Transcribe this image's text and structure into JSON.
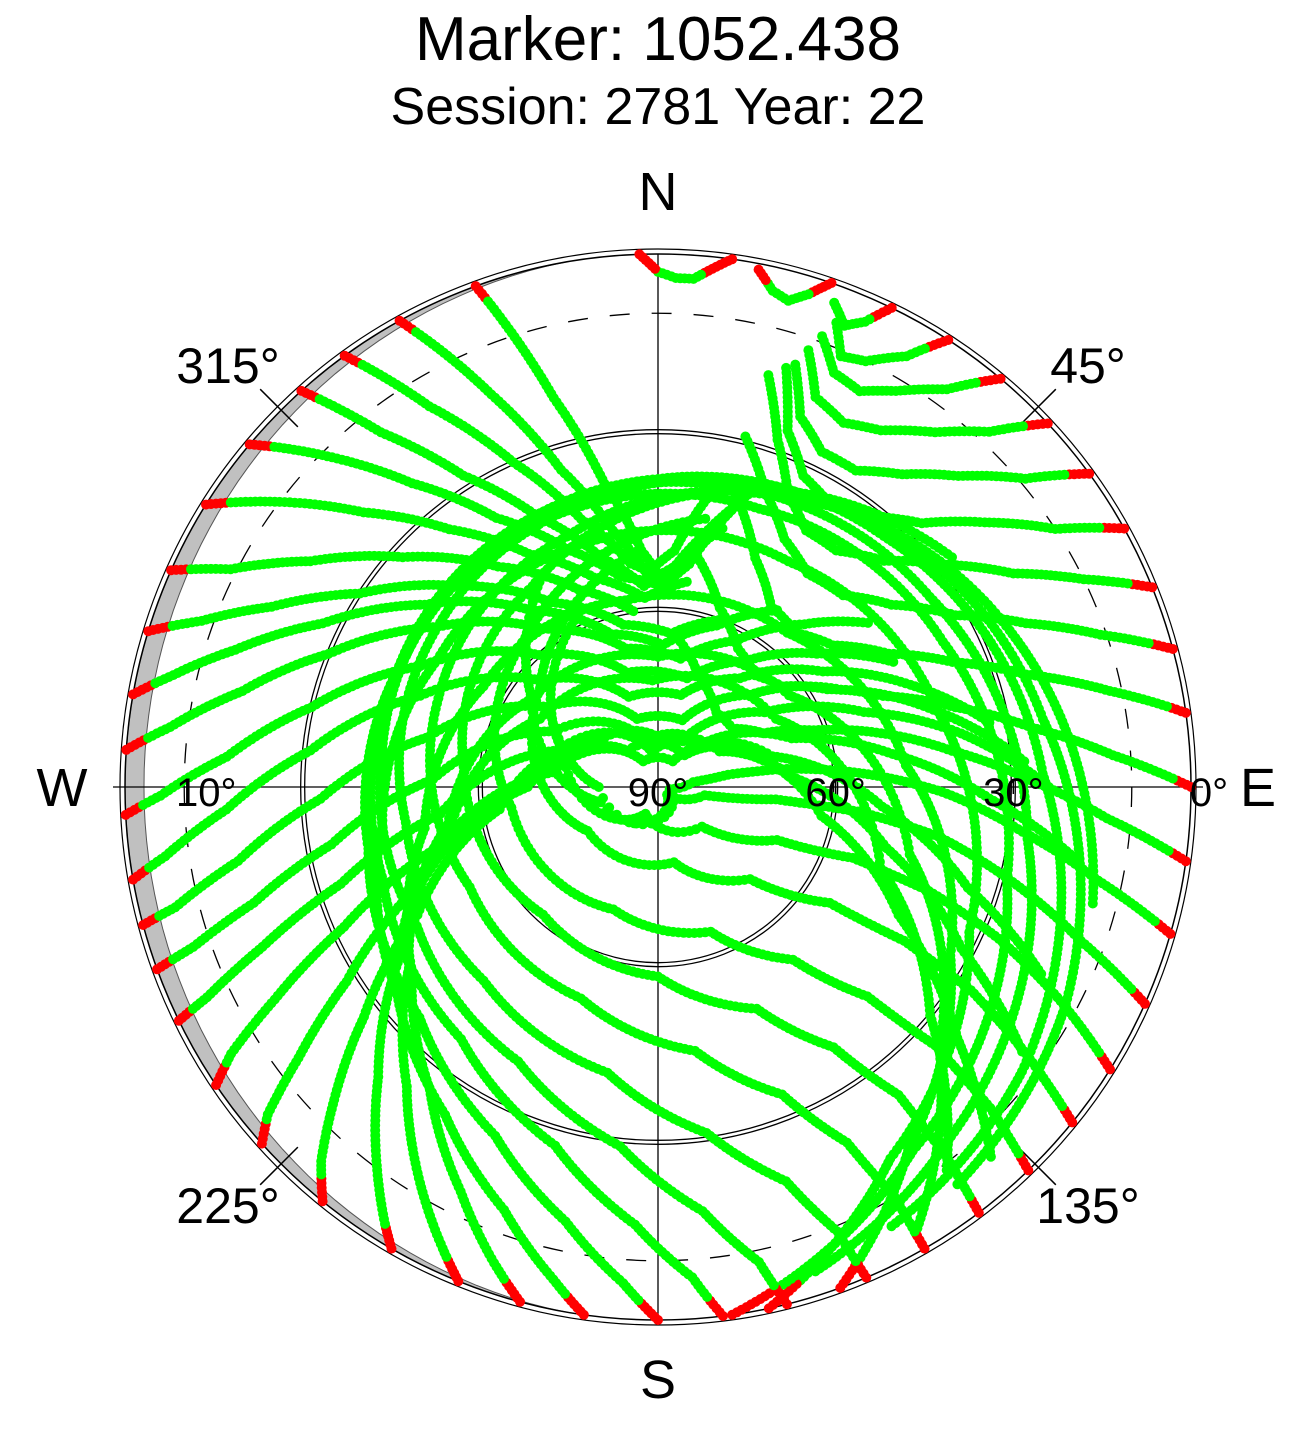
{
  "title": "Marker: 1052.438",
  "subtitle": "Session: 2781 Year: 22",
  "chart_data": {
    "type": "scatter",
    "projection": "polar (sky plot: azimuth clockwise from North, elevation 90° at centre to 0° at rim)",
    "grid": true,
    "compass": {
      "north": "N",
      "east": "E",
      "south": "S",
      "west": "W"
    },
    "azimuth_tick_labels": [
      {
        "az": 45,
        "label": "45°"
      },
      {
        "az": 135,
        "label": "135°"
      },
      {
        "az": 225,
        "label": "225°"
      },
      {
        "az": 315,
        "label": "315°"
      }
    ],
    "elevation_tick_labels_east": [
      {
        "el": 90,
        "label": "90°"
      },
      {
        "el": 60,
        "label": "60°"
      },
      {
        "el": 30,
        "label": "30°"
      },
      {
        "el": 0,
        "label": "0°"
      }
    ],
    "elevation_tick_label_west": {
      "el": 10,
      "label": "10°"
    },
    "elevation_rings": [
      60,
      30
    ],
    "cutoff_ring_dashed": 10,
    "horizon_mask_color": "#c0c0c0",
    "colors": {
      "track": "#00ff00",
      "low_elevation": "#ff0000",
      "grid": "#000000"
    },
    "low_elevation_threshold": 3,
    "tracks": [
      {
        "az": [
          340,
          345,
          350,
          356,
          2,
          8,
          14,
          18
        ],
        "el": [
          0,
          22,
          38,
          50,
          56,
          52,
          43,
          37
        ]
      },
      {
        "az": [
          331,
          337,
          343,
          350,
          357,
          4,
          10
        ],
        "el": [
          0,
          18,
          34,
          46,
          54,
          50,
          40
        ]
      },
      {
        "az": [
          324,
          329,
          336,
          344,
          353,
          2,
          10,
          16
        ],
        "el": [
          0,
          15,
          30,
          43,
          52,
          55,
          47,
          40
        ]
      },
      {
        "az": [
          318,
          322,
          328,
          336,
          346,
          356,
          6,
          14
        ],
        "el": [
          0,
          14,
          28,
          40,
          50,
          56,
          52,
          45
        ]
      },
      {
        "az": [
          310,
          315,
          321,
          329,
          339,
          350,
          1
        ],
        "el": [
          0,
          11,
          24,
          37,
          47,
          54,
          56
        ]
      },
      {
        "az": [
          302,
          307,
          313,
          321,
          331,
          343,
          356,
          8
        ],
        "el": [
          0,
          10,
          22,
          34,
          45,
          53,
          58,
          55
        ]
      },
      {
        "az": [
          294,
          297,
          303,
          312,
          324,
          338,
          352
        ],
        "el": [
          0,
          9,
          20,
          32,
          44,
          54,
          60
        ]
      },
      {
        "az": [
          287,
          290,
          295,
          303,
          315,
          330,
          348,
          5,
          20
        ],
        "el": [
          0,
          8,
          18,
          30,
          42,
          54,
          62,
          64,
          60
        ]
      },
      {
        "az": [
          280,
          283,
          288,
          296,
          308,
          324,
          343,
          2,
          20,
          34
        ],
        "el": [
          0,
          6,
          15,
          27,
          40,
          53,
          63,
          66,
          61,
          54
        ]
      },
      {
        "az": [
          274,
          277,
          283,
          292,
          306,
          324,
          347,
          10,
          28,
          42,
          52
        ],
        "el": [
          0,
          7,
          18,
          30,
          44,
          57,
          66,
          68,
          62,
          53,
          45
        ]
      },
      {
        "az": [
          267,
          269,
          274,
          283,
          297,
          318,
          345,
          15,
          35,
          50,
          62
        ],
        "el": [
          0,
          6,
          17,
          30,
          45,
          60,
          70,
          71,
          64,
          55,
          45
        ]
      },
      {
        "az": [
          260,
          262,
          267,
          276,
          291,
          312,
          342,
          14,
          37,
          55,
          68,
          79
        ],
        "el": [
          0,
          6,
          17,
          31,
          47,
          63,
          74,
          74,
          67,
          56,
          44,
          33
        ]
      },
      {
        "az": [
          255,
          256,
          260,
          268,
          282,
          306,
          343,
          20,
          45,
          62,
          75,
          86
        ],
        "el": [
          0,
          6,
          18,
          33,
          50,
          67,
          78,
          78,
          68,
          55,
          41,
          28
        ]
      },
      {
        "az": [
          250,
          251,
          254,
          260,
          272,
          298,
          345,
          30,
          55,
          70,
          80,
          90
        ],
        "el": [
          0,
          7,
          19,
          34,
          52,
          70,
          82,
          80,
          68,
          53,
          38,
          24
        ]
      },
      {
        "az": [
          244,
          245,
          248,
          253,
          263,
          290,
          350,
          45,
          70,
          82,
          92,
          100
        ],
        "el": [
          0,
          6,
          18,
          34,
          53,
          72,
          84,
          80,
          66,
          50,
          34,
          18
        ]
      },
      {
        "az": [
          236,
          238,
          241,
          246,
          255,
          278,
          330,
          30,
          75,
          95,
          108,
          116
        ],
        "el": [
          0,
          5,
          16,
          32,
          52,
          72,
          85,
          85,
          70,
          52,
          35,
          18
        ]
      },
      {
        "az": [
          228,
          230,
          233,
          238,
          248,
          270,
          320,
          40,
          85,
          105,
          118,
          126
        ],
        "el": [
          0,
          4,
          14,
          28,
          47,
          68,
          82,
          83,
          68,
          50,
          32,
          14
        ]
      },
      {
        "az": [
          219,
          222,
          226,
          232,
          242,
          262,
          305,
          5,
          60,
          100,
          118,
          130,
          138
        ],
        "el": [
          0,
          5,
          14,
          27,
          44,
          63,
          77,
          82,
          78,
          62,
          44,
          24,
          6
        ]
      },
      {
        "az": [
          210,
          212,
          217,
          224,
          236,
          258,
          300,
          357,
          60,
          110,
          130,
          143
        ],
        "el": [
          0,
          3,
          11,
          22,
          37,
          54,
          67,
          72,
          67,
          50,
          30,
          9
        ]
      },
      {
        "az": [
          202,
          205,
          211,
          220,
          234,
          260,
          305,
          0,
          55,
          105,
          133,
          150
        ],
        "el": [
          0,
          4,
          12,
          24,
          38,
          54,
          64,
          68,
          63,
          46,
          25,
          3
        ]
      },
      {
        "az": [
          195,
          199,
          206,
          217,
          233,
          260,
          300,
          350,
          40,
          85,
          120,
          145,
          160
        ],
        "el": [
          0,
          5,
          14,
          26,
          38,
          50,
          56,
          58,
          56,
          48,
          33,
          16,
          0
        ]
      },
      {
        "az": [
          188,
          192,
          200,
          213,
          232,
          262,
          300,
          345,
          30,
          75,
          115,
          148,
          168
        ],
        "el": [
          0,
          5,
          14,
          24,
          34,
          43,
          47,
          47,
          46,
          41,
          32,
          16,
          0
        ]
      },
      {
        "az": [
          180,
          184,
          192,
          205,
          226,
          258,
          298,
          338,
          20,
          63,
          105,
          145,
          172
        ],
        "el": [
          0,
          6,
          15,
          25,
          34,
          40,
          42,
          41,
          40,
          36,
          29,
          15,
          0
        ]
      },
      {
        "az": [
          173,
          176,
          183,
          196,
          218,
          252,
          290,
          330,
          12,
          55,
          98,
          140,
          162
        ],
        "el": [
          0,
          7,
          16,
          27,
          36,
          41,
          42,
          40,
          38,
          34,
          27,
          13,
          4
        ]
      },
      {
        "az": [
          166,
          168,
          174,
          186,
          207,
          240,
          278,
          318,
          0,
          42,
          88,
          128,
          152
        ],
        "el": [
          0,
          8,
          18,
          29,
          38,
          43,
          43,
          41,
          38,
          33,
          25,
          12,
          6
        ]
      },
      {
        "az": [
          157,
          158,
          162,
          172,
          190,
          222,
          262,
          306,
          350,
          32,
          80,
          118,
          143
        ],
        "el": [
          0,
          9,
          20,
          31,
          41,
          46,
          47,
          44,
          40,
          34,
          24,
          12,
          6
        ]
      },
      {
        "az": [
          150,
          150,
          152,
          158,
          172,
          200,
          242,
          292,
          340,
          22,
          66,
          105
        ],
        "el": [
          0,
          10,
          22,
          34,
          45,
          52,
          54,
          50,
          45,
          37,
          25,
          14
        ]
      },
      {
        "az": [
          143,
          142,
          142,
          146,
          156,
          180,
          222,
          276,
          328,
          12,
          52
        ],
        "el": [
          0,
          11,
          24,
          37,
          49,
          58,
          61,
          57,
          50,
          39,
          27
        ]
      },
      {
        "az": [
          136,
          134,
          133,
          135,
          142,
          160,
          200,
          262,
          320,
          10
        ],
        "el": [
          0,
          12,
          26,
          40,
          53,
          64,
          68,
          65,
          56,
          44
        ]
      },
      {
        "az": [
          129,
          126,
          123,
          122,
          124,
          135,
          168,
          238,
          310,
          355
        ],
        "el": [
          0,
          13,
          27,
          41,
          55,
          68,
          77,
          76,
          64,
          50
        ]
      },
      {
        "az": [
          122,
          118,
          114,
          111,
          110,
          114,
          132,
          205,
          290,
          335
        ],
        "el": [
          0,
          13,
          27,
          41,
          55,
          68,
          80,
          85,
          73,
          58
        ]
      },
      {
        "az": [
          114,
          110,
          105,
          100,
          97,
          96,
          100,
          130,
          255,
          305,
          330
        ],
        "el": [
          0,
          14,
          28,
          42,
          56,
          70,
          82,
          88,
          80,
          64,
          50
        ]
      },
      {
        "az": [
          106,
          102,
          97,
          91,
          86,
          82,
          80,
          82,
          100,
          270,
          300
        ],
        "el": [
          0,
          14,
          28,
          42,
          56,
          68,
          78,
          84,
          88,
          80,
          70
        ]
      },
      {
        "az": [
          98,
          94,
          89,
          83,
          76,
          70,
          63,
          52,
          38,
          20,
          6
        ],
        "el": [
          0,
          14,
          27,
          40,
          52,
          62,
          70,
          74,
          74,
          70,
          64
        ]
      },
      {
        "az": [
          90,
          86,
          81,
          75,
          68,
          60,
          51,
          41,
          30,
          19,
          9
        ],
        "el": [
          0,
          13,
          26,
          38,
          49,
          57,
          63,
          65,
          63,
          58,
          50
        ]
      },
      {
        "az": [
          82,
          78,
          73,
          67,
          60,
          51,
          42,
          32,
          23,
          15
        ],
        "el": [
          0,
          12,
          25,
          36,
          45,
          52,
          55,
          54,
          48,
          39
        ]
      },
      {
        "az": [
          75,
          71,
          66,
          60,
          52,
          44,
          35,
          27,
          20,
          14
        ],
        "el": [
          0,
          11,
          22,
          32,
          40,
          45,
          46,
          43,
          37,
          29
        ]
      },
      {
        "az": [
          68,
          64,
          59,
          52,
          45,
          37,
          30,
          24,
          19,
          15
        ],
        "el": [
          0,
          10,
          20,
          29,
          36,
          40,
          40,
          36,
          28,
          18
        ]
      },
      {
        "az": [
          61,
          57,
          51,
          45,
          38,
          31,
          25,
          20,
          17
        ],
        "el": [
          0,
          10,
          19,
          27,
          32,
          34,
          32,
          26,
          16
        ]
      },
      {
        "az": [
          54,
          50,
          44,
          38,
          32,
          26,
          21,
          18
        ],
        "el": [
          0,
          9,
          17,
          23,
          27,
          27,
          23,
          15
        ]
      },
      {
        "az": [
          47,
          43,
          38,
          32,
          27,
          22,
          19
        ],
        "el": [
          0,
          8,
          14,
          19,
          21,
          19,
          12
        ]
      },
      {
        "az": [
          40,
          36,
          31,
          27,
          23,
          20
        ],
        "el": [
          0,
          7,
          12,
          15,
          14,
          9
        ]
      },
      {
        "az": [
          33,
          30,
          26,
          23,
          21
        ],
        "el": [
          0,
          6,
          10,
          11,
          6
        ]
      },
      {
        "az": [
          26,
          24,
          22,
          20
        ],
        "el": [
          0,
          4,
          6,
          3
        ]
      },
      {
        "az": [
          19,
          17,
          15,
          13,
          11
        ],
        "el": [
          0,
          3,
          5,
          4,
          1
        ]
      },
      {
        "az": [
          8,
          6,
          4,
          2,
          360,
          358
        ],
        "el": [
          0,
          2,
          4,
          4,
          3,
          0
        ]
      }
    ]
  }
}
